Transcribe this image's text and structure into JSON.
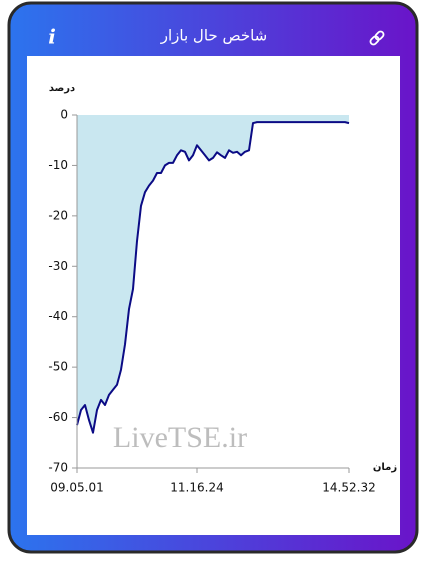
{
  "header": {
    "title": "شاخص حال بازار",
    "info_icon": "i"
  },
  "watermark": "LiveTSE.ir",
  "chart_data": {
    "type": "area",
    "y_label": "درصد",
    "x_label": "زمان",
    "color": "#0b0b85",
    "fill_color": "#c9e7f0",
    "ylim": [
      -70,
      0
    ],
    "yticks": [
      0,
      -10,
      -20,
      -30,
      -40,
      -50,
      -60,
      -70
    ],
    "categories": [
      "09.05.01",
      null,
      null,
      null,
      null,
      null,
      null,
      null,
      null,
      null,
      null,
      null,
      null,
      null,
      null,
      null,
      null,
      null,
      null,
      null,
      null,
      null,
      null,
      null,
      null,
      null,
      null,
      null,
      null,
      null,
      "11.16.24",
      null,
      null,
      null,
      null,
      null,
      null,
      null,
      null,
      null,
      null,
      null,
      null,
      null,
      null,
      null,
      null,
      null,
      null,
      null,
      null,
      null,
      null,
      null,
      null,
      null,
      null,
      null,
      null,
      null,
      null,
      null,
      null,
      null,
      null,
      null,
      null,
      null,
      "14.52.32"
    ],
    "values": [
      -61.5,
      -58.5,
      -57.5,
      -60.5,
      -63,
      -58.5,
      -56.5,
      -57.5,
      -55.5,
      -54.5,
      -53.5,
      -50.5,
      -45.5,
      -38.5,
      -34.5,
      -25,
      -18,
      -15.3,
      -14,
      -13,
      -11.5,
      -11.5,
      -10,
      -9.5,
      -9.5,
      -8,
      -7,
      -7.3,
      -9,
      -8,
      -6,
      -7,
      -8,
      -9,
      -8.5,
      -7.4,
      -8,
      -8.5,
      -7,
      -7.5,
      -7.3,
      -8,
      -7.3,
      -7,
      -1.6,
      -1.4,
      -1.4,
      -1.4,
      -1.4,
      -1.4,
      -1.4,
      -1.4,
      -1.4,
      -1.4,
      -1.4,
      -1.4,
      -1.4,
      -1.4,
      -1.4,
      -1.4,
      -1.4,
      -1.4,
      -1.4,
      -1.4,
      -1.4,
      -1.4,
      -1.4,
      -1.4,
      -1.6
    ]
  }
}
